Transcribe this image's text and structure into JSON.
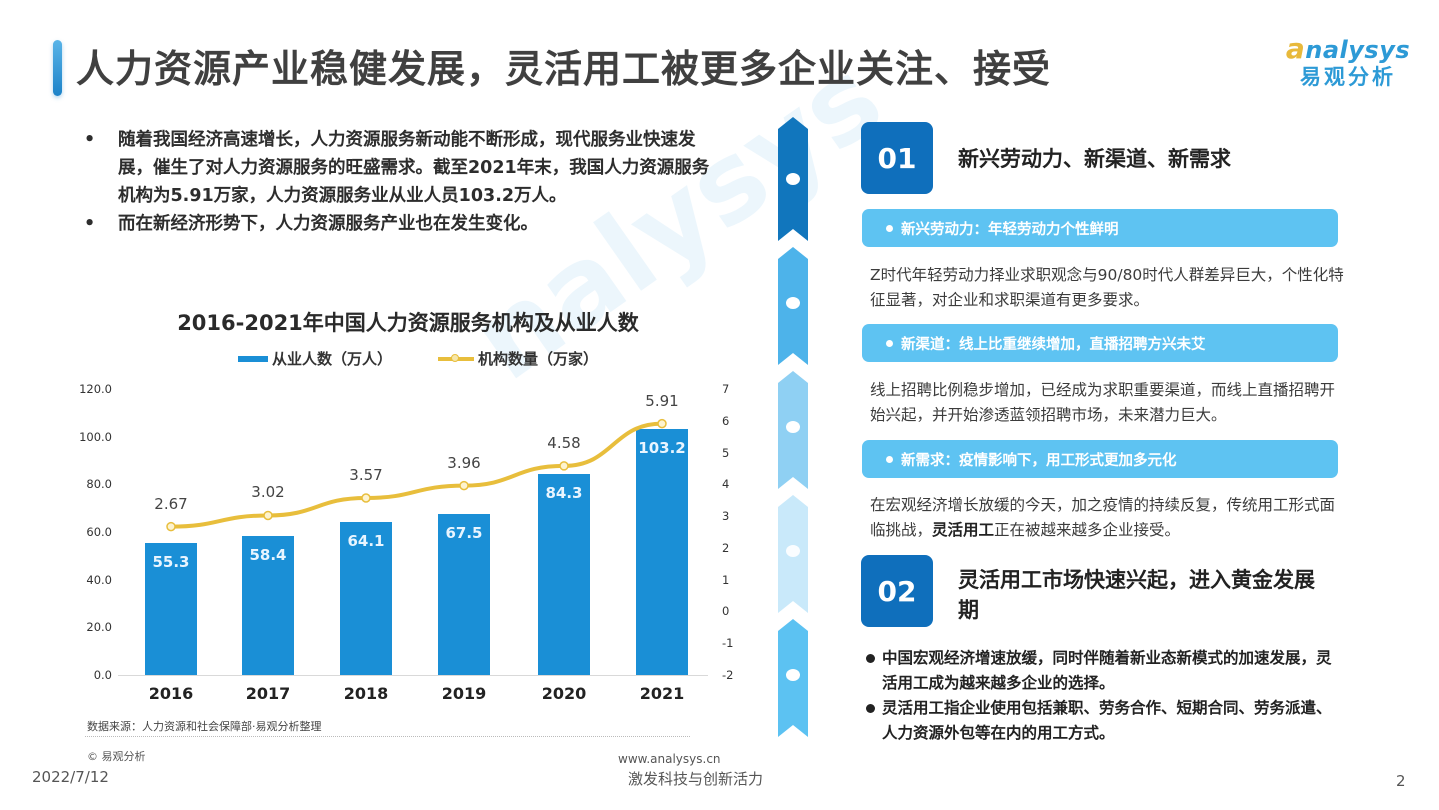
{
  "header": {
    "title": "人力资源产业稳健发展，灵活用工被更多企业关注、接受",
    "logo_en_prefix": "a",
    "logo_en_rest": "nalysys",
    "logo_cn": "易观分析"
  },
  "intro": {
    "bullet_symbol": "•",
    "bullets": [
      "随着我国经济高速增长，人力资源服务新动能不断形成，现代服务业快速发展，催生了对人力资源服务的旺盛需求。截至2021年末，我国人力资源服务机构为5.91万家，人力资源服务业从业人员103.2万人。",
      "而在新经济形势下，人力资源服务产业也在发生变化。"
    ]
  },
  "chart_data": {
    "type": "bar+line",
    "title": "2016-2021年中国人力资源服务机构及从业人数",
    "categories": [
      "2016",
      "2017",
      "2018",
      "2019",
      "2020",
      "2021"
    ],
    "series": [
      {
        "name": "从业人数（万人）",
        "type": "bar",
        "axis": "left",
        "color": "#1a8fd6",
        "values": [
          55.3,
          58.4,
          64.1,
          67.5,
          84.3,
          103.2
        ],
        "labels": [
          "55.3",
          "58.4",
          "64.1",
          "67.5",
          "84.3",
          "103.2"
        ]
      },
      {
        "name": "机构数量（万家）",
        "type": "line",
        "axis": "right",
        "color": "#e8be3c",
        "values": [
          2.67,
          3.02,
          3.57,
          3.96,
          4.58,
          5.91
        ],
        "labels": [
          "2.67",
          "3.02",
          "3.57",
          "3.96",
          "4.58",
          "5.91"
        ]
      }
    ],
    "left_axis": {
      "ticks": [
        "120.0",
        "100.0",
        "80.0",
        "60.0",
        "40.0",
        "20.0",
        "0.0"
      ],
      "range": [
        0,
        120
      ]
    },
    "right_axis": {
      "ticks": [
        "7",
        "6",
        "5",
        "4",
        "3",
        "2",
        "1",
        "0",
        "-1",
        "-2"
      ],
      "range": [
        -2,
        7
      ]
    },
    "legend_position": "top",
    "grid": false
  },
  "footer": {
    "source": "数据来源：人力资源和社会保障部·易观分析整理",
    "copyright": "© 易观分析",
    "website": "www.analysys.cn",
    "date": "2022/7/12",
    "slogan": "激发科技与创新活力",
    "page_number": "2"
  },
  "right_panel": {
    "section1": {
      "badge": "01",
      "title": "新兴劳动力、新渠道、新需求",
      "items": [
        {
          "pill": "新兴劳动力：年轻劳动力个性鲜明",
          "text": "Z时代年轻劳动力择业求职观念与90/80时代人群差异巨大，个性化特征显著，对企业和求职渠道有更多要求。"
        },
        {
          "pill": "新渠道：线上比重继续增加，直播招聘方兴未艾",
          "text": "线上招聘比例稳步增加，已经成为求职重要渠道，而线上直播招聘开始兴起，并开始渗透蓝领招聘市场，未来潜力巨大。"
        },
        {
          "pill": "新需求：疫情影响下，用工形式更加多元化",
          "text_before": "在宏观经济增长放缓的今天，加之疫情的持续反复，传统用工形式面临挑战，",
          "text_bold": "灵活用工",
          "text_after": "正在被越来越多企业接受。"
        }
      ]
    },
    "section2": {
      "badge": "02",
      "title": "灵活用工市场快速兴起，进入黄金发展期",
      "bullets": [
        "中国宏观经济增速放缓，同时伴随着新业态新模式的加速发展，灵活用工成为越来越多企业的选择。",
        "灵活用工指企业使用包括兼职、劳务合作、短期合同、劳务派遣、人力资源外包等在内的用工方式。"
      ]
    },
    "timeline_colors": [
      "#1176bd",
      "#4db3ea",
      "#8fd0f3",
      "#c9e9fa",
      "#5cc2f2"
    ]
  }
}
